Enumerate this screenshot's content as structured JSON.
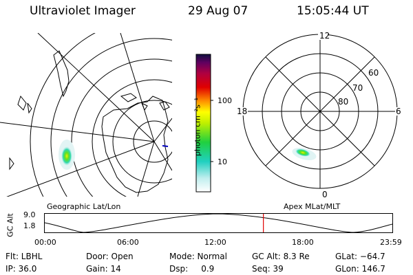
{
  "header": {
    "instrument": "Ultraviolet Imager",
    "date": "29 Aug 07",
    "time": "15:05:44 UT"
  },
  "colorbar": {
    "unit_label": "photon cm⁻²s⁻¹",
    "ticks": [
      "100",
      "10"
    ]
  },
  "geo_panel": {
    "label": "Geographic Lat/Lon"
  },
  "polar_panel": {
    "label": "Apex MLat/MLT",
    "mlt_labels": {
      "top": "12",
      "left": "18",
      "right": "6",
      "bottom": "0"
    },
    "lat_labels": [
      "60",
      "70",
      "80"
    ]
  },
  "altitude_plot": {
    "ylabel": "GC Alt",
    "yticks": [
      "9.0",
      "1.8"
    ],
    "xticks": [
      "00:00",
      "06:00",
      "12:00",
      "18:00",
      "23:59"
    ],
    "marker_time_hours": 15.096
  },
  "status": {
    "filter": "Flt: LBHL",
    "ip": "IP: 36.0",
    "door": "Door: Open",
    "gain": "Gain: 14",
    "mode": "Mode: Normal",
    "dsp": "Dsp:     0.9",
    "gc_alt": "GC Alt: 8.3 Re",
    "seq": "Seq: 39",
    "glat": "GLat: −64.7",
    "glon": "GLon: 146.7"
  }
}
